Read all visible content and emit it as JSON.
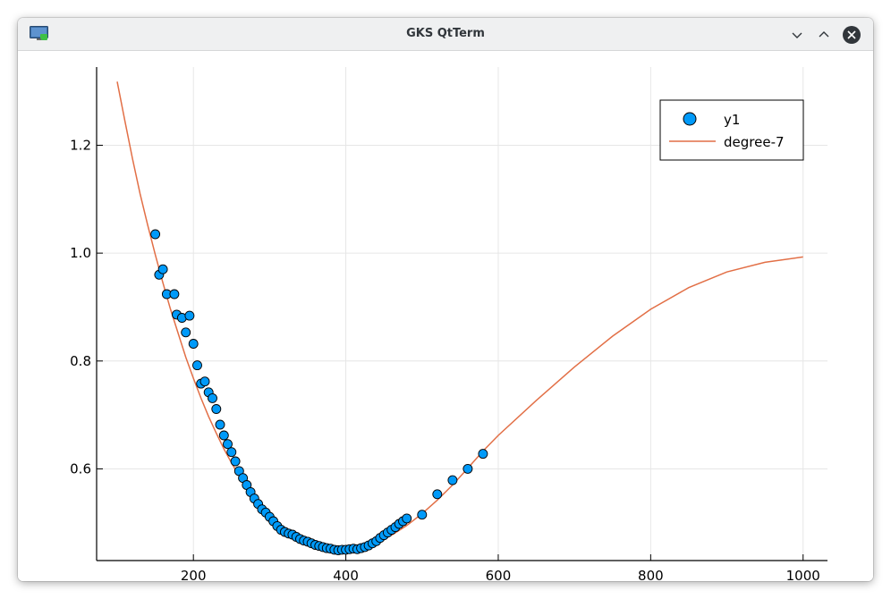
{
  "window": {
    "title": "GKS QtTerm",
    "icon": "display-icon",
    "controls": [
      "minimize-icon",
      "maximize-icon",
      "close-icon"
    ]
  },
  "chart_data": {
    "type": "scatter",
    "title": "",
    "xlabel": "",
    "ylabel": "",
    "xlim": [
      73,
      1032
    ],
    "ylim": [
      0.43,
      1.345
    ],
    "xticks": [
      200,
      400,
      600,
      800,
      1000
    ],
    "xtick_labels": [
      "200",
      "400",
      "600",
      "800",
      "1000"
    ],
    "yticks": [
      0.6,
      0.8,
      1.0,
      1.2
    ],
    "ytick_labels": [
      "0.6",
      "0.8",
      "1.0",
      "1.2"
    ],
    "grid": true,
    "legend_position": "top-right",
    "series": [
      {
        "name": "y1",
        "kind": "scatter",
        "color": "#009af9",
        "points": [
          [
            150,
            1.035
          ],
          [
            155,
            0.96
          ],
          [
            160,
            0.97
          ],
          [
            165,
            0.924
          ],
          [
            175,
            0.924
          ],
          [
            178,
            0.886
          ],
          [
            185,
            0.88
          ],
          [
            190,
            0.853
          ],
          [
            195,
            0.884
          ],
          [
            200,
            0.832
          ],
          [
            205,
            0.792
          ],
          [
            210,
            0.758
          ],
          [
            215,
            0.762
          ],
          [
            220,
            0.742
          ],
          [
            225,
            0.731
          ],
          [
            230,
            0.711
          ],
          [
            235,
            0.682
          ],
          [
            240,
            0.662
          ],
          [
            245,
            0.646
          ],
          [
            250,
            0.631
          ],
          [
            255,
            0.614
          ],
          [
            260,
            0.596
          ],
          [
            265,
            0.583
          ],
          [
            270,
            0.57
          ],
          [
            275,
            0.557
          ],
          [
            280,
            0.545
          ],
          [
            285,
            0.535
          ],
          [
            290,
            0.525
          ],
          [
            295,
            0.519
          ],
          [
            300,
            0.511
          ],
          [
            305,
            0.503
          ],
          [
            310,
            0.494
          ],
          [
            315,
            0.487
          ],
          [
            320,
            0.483
          ],
          [
            325,
            0.48
          ],
          [
            330,
            0.478
          ],
          [
            335,
            0.474
          ],
          [
            340,
            0.47
          ],
          [
            345,
            0.467
          ],
          [
            350,
            0.465
          ],
          [
            355,
            0.462
          ],
          [
            360,
            0.459
          ],
          [
            365,
            0.457
          ],
          [
            370,
            0.455
          ],
          [
            375,
            0.453
          ],
          [
            380,
            0.452
          ],
          [
            385,
            0.45
          ],
          [
            390,
            0.449
          ],
          [
            395,
            0.45
          ],
          [
            400,
            0.45
          ],
          [
            405,
            0.451
          ],
          [
            410,
            0.452
          ],
          [
            415,
            0.451
          ],
          [
            420,
            0.453
          ],
          [
            425,
            0.455
          ],
          [
            430,
            0.458
          ],
          [
            435,
            0.462
          ],
          [
            440,
            0.466
          ],
          [
            445,
            0.472
          ],
          [
            450,
            0.477
          ],
          [
            455,
            0.482
          ],
          [
            460,
            0.487
          ],
          [
            465,
            0.492
          ],
          [
            470,
            0.498
          ],
          [
            475,
            0.503
          ],
          [
            480,
            0.508
          ],
          [
            500,
            0.515
          ],
          [
            520,
            0.553
          ],
          [
            540,
            0.579
          ],
          [
            560,
            0.6
          ],
          [
            580,
            0.628
          ]
        ]
      },
      {
        "name": "degree-7",
        "kind": "line",
        "color": "#e26f46",
        "points": [
          [
            100,
            1.318
          ],
          [
            110,
            1.246
          ],
          [
            120,
            1.176
          ],
          [
            130,
            1.11
          ],
          [
            140,
            1.052
          ],
          [
            150,
            0.997
          ],
          [
            160,
            0.945
          ],
          [
            170,
            0.896
          ],
          [
            180,
            0.851
          ],
          [
            190,
            0.807
          ],
          [
            200,
            0.768
          ],
          [
            210,
            0.731
          ],
          [
            220,
            0.697
          ],
          [
            230,
            0.666
          ],
          [
            240,
            0.637
          ],
          [
            250,
            0.611
          ],
          [
            260,
            0.587
          ],
          [
            270,
            0.566
          ],
          [
            280,
            0.546
          ],
          [
            290,
            0.529
          ],
          [
            300,
            0.514
          ],
          [
            310,
            0.5
          ],
          [
            320,
            0.489
          ],
          [
            330,
            0.479
          ],
          [
            340,
            0.471
          ],
          [
            350,
            0.464
          ],
          [
            360,
            0.459
          ],
          [
            370,
            0.455
          ],
          [
            380,
            0.452
          ],
          [
            390,
            0.451
          ],
          [
            400,
            0.451
          ],
          [
            410,
            0.452
          ],
          [
            420,
            0.455
          ],
          [
            430,
            0.459
          ],
          [
            440,
            0.464
          ],
          [
            450,
            0.47
          ],
          [
            460,
            0.477
          ],
          [
            470,
            0.486
          ],
          [
            480,
            0.495
          ],
          [
            500,
            0.517
          ],
          [
            520,
            0.542
          ],
          [
            540,
            0.57
          ],
          [
            560,
            0.601
          ],
          [
            580,
            0.633
          ],
          [
            600,
            0.662
          ],
          [
            650,
            0.727
          ],
          [
            700,
            0.789
          ],
          [
            750,
            0.846
          ],
          [
            800,
            0.896
          ],
          [
            850,
            0.936
          ],
          [
            900,
            0.965
          ],
          [
            950,
            0.983
          ],
          [
            1000,
            0.993
          ]
        ]
      }
    ]
  }
}
